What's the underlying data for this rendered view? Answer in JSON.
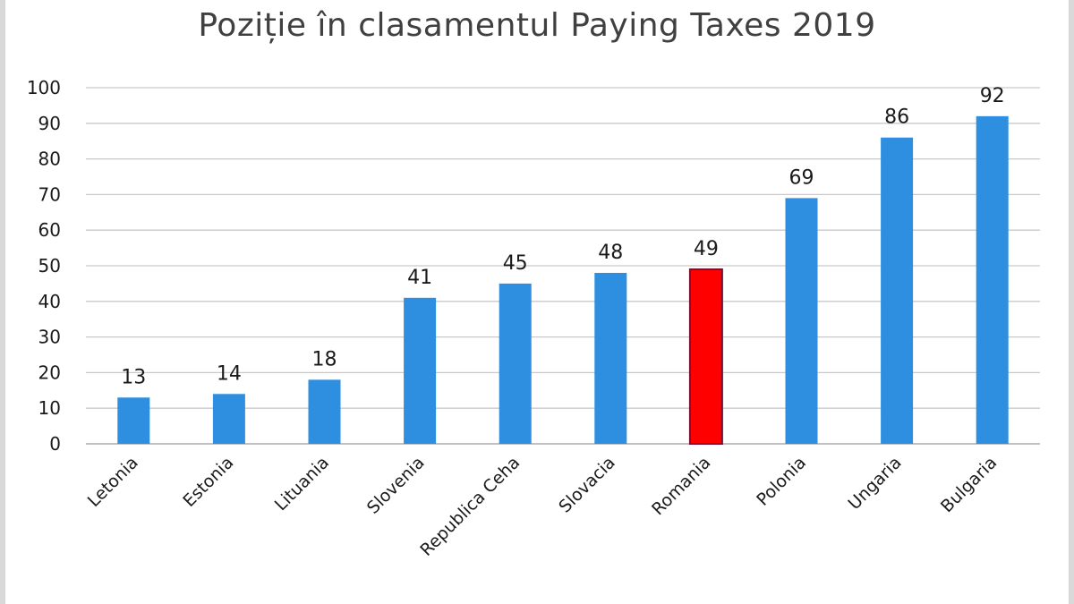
{
  "chart_data": {
    "type": "bar",
    "title": "Poziție în clasamentul Paying Taxes 2019",
    "xlabel": "",
    "ylabel": "",
    "ylim": [
      0,
      100
    ],
    "yticks": [
      0,
      10,
      20,
      30,
      40,
      50,
      60,
      70,
      80,
      90,
      100
    ],
    "grid": true,
    "categories": [
      "Letonia",
      "Estonia",
      "Lituania",
      "Slovenia",
      "Republica Ceha",
      "Slovacia",
      "Romania",
      "Polonia",
      "Ungaria",
      "Bulgaria"
    ],
    "values": [
      13,
      14,
      18,
      41,
      45,
      48,
      49,
      69,
      86,
      92
    ],
    "data_labels": [
      "13",
      "14",
      "18",
      "41",
      "45",
      "48",
      "49",
      "69",
      "86",
      "92"
    ],
    "bar_color": "#2e8fe0",
    "highlight": {
      "category": "Romania",
      "color": "#ff0000"
    },
    "grid_color": "#c9c9c9"
  }
}
